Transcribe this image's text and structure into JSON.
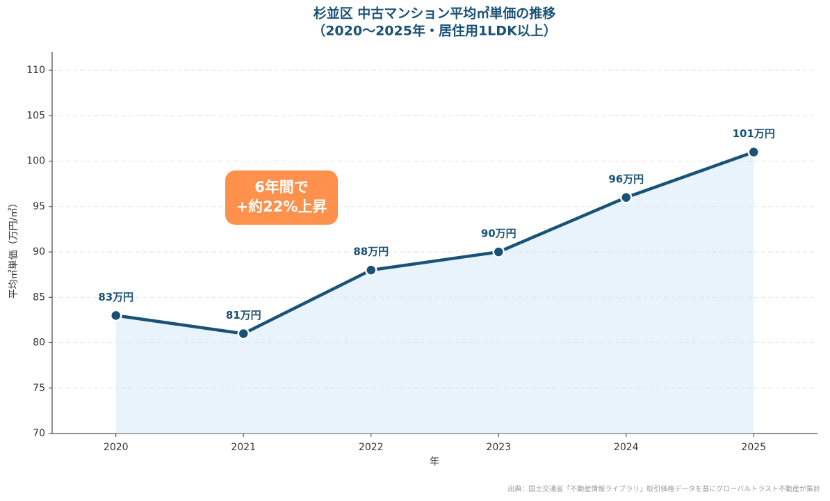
{
  "chart_data": {
    "type": "line",
    "title": [
      "杉並区 中古マンション平均㎡単価の推移",
      "（2020〜2025年・居住用1LDK以上）"
    ],
    "x": [
      2020,
      2021,
      2022,
      2023,
      2024,
      2025
    ],
    "values": [
      83,
      81,
      88,
      90,
      96,
      101
    ],
    "value_labels": [
      "83万円",
      "81万円",
      "88万円",
      "90万円",
      "96万円",
      "101万円"
    ],
    "color": "#1a5276",
    "area_color": "#d6eaf8",
    "xlim": [
      2019.5,
      2025.5
    ],
    "xticks": [
      2020,
      2021,
      2022,
      2023,
      2024,
      2025
    ],
    "ylim": [
      70,
      112
    ],
    "yticks": [
      70,
      75,
      80,
      85,
      90,
      95,
      100,
      105,
      110
    ],
    "grid": true,
    "x_label": "年",
    "y_label": "平均㎡単価（万円/㎡）",
    "annotation": [
      "6年間で",
      "+約22%上昇"
    ],
    "annotation_color": "#ff914d",
    "source": "出典：国土交通省「不動産情報ライブラリ」取引価格データを基にグローバルトラスト不動産が集計"
  }
}
